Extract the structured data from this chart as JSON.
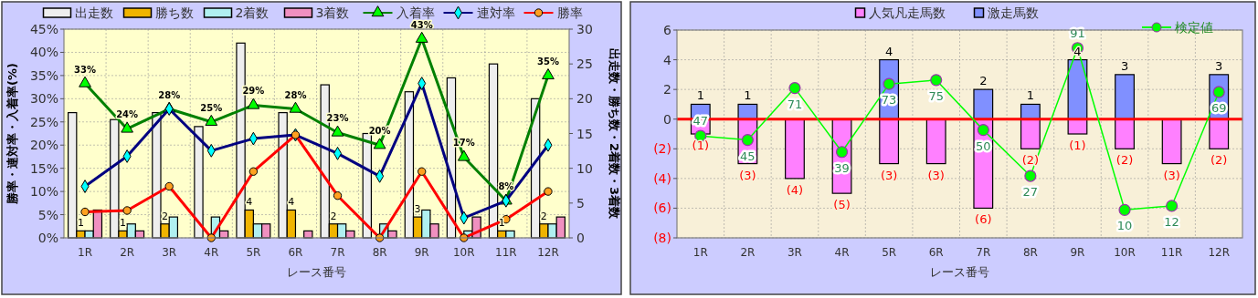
{
  "chart_data": [
    {
      "type": "bar",
      "xlabel": "レース番号",
      "ylabel": "勝率・連対率・入着率(%)",
      "y2label": "出走数・勝ち数・2着数・3着数",
      "categories": [
        "1R",
        "2R",
        "3R",
        "4R",
        "5R",
        "6R",
        "7R",
        "8R",
        "9R",
        "10R",
        "11R",
        "12R"
      ],
      "ylim": [
        0,
        45
      ],
      "yticks": [
        {
          "value": 0,
          "label": "0%"
        },
        {
          "value": 5,
          "label": "5%"
        },
        {
          "value": 10,
          "label": "10%"
        },
        {
          "value": 15,
          "label": "15%"
        },
        {
          "value": 20,
          "label": "20%"
        },
        {
          "value": 25,
          "label": "25%"
        },
        {
          "value": 30,
          "label": "30%"
        },
        {
          "value": 35,
          "label": "35%"
        },
        {
          "value": 40,
          "label": "40%"
        },
        {
          "value": 45,
          "label": "45%"
        }
      ],
      "y2lim": [
        0,
        30
      ],
      "y2ticks": [
        0,
        5,
        10,
        15,
        20,
        25,
        30
      ],
      "grid": true,
      "legend": "top",
      "series": [
        {
          "name": "出走数",
          "type": "bar",
          "axis": "y2",
          "color": "#eeeeee",
          "values": [
            18,
            17,
            18,
            16,
            28,
            18,
            22,
            15,
            21,
            23,
            25,
            20
          ]
        },
        {
          "name": "勝ち数",
          "type": "bar",
          "axis": "y2",
          "color": "#f0b400",
          "values": [
            1,
            1,
            2,
            0,
            4,
            4,
            2,
            0,
            3,
            0,
            1,
            2
          ],
          "value_labels": [
            "1",
            "1",
            "2",
            null,
            "4",
            "4",
            "2",
            null,
            "3",
            null,
            "1",
            "2"
          ]
        },
        {
          "name": "2着数",
          "type": "bar",
          "axis": "y2",
          "color": "#b0f0f0",
          "values": [
            1,
            2,
            3,
            3,
            2,
            0,
            2,
            2,
            4,
            1,
            1,
            2
          ]
        },
        {
          "name": "3着数",
          "type": "bar",
          "axis": "y2",
          "color": "#f090c0",
          "values": [
            4,
            1,
            0,
            1,
            2,
            1,
            1,
            1,
            2,
            3,
            0,
            3
          ]
        },
        {
          "name": "入着率",
          "type": "line",
          "color": "#008000",
          "marker": "triangle",
          "values": [
            33.3,
            23.5,
            27.8,
            25,
            28.6,
            27.8,
            22.7,
            20,
            42.9,
            17.4,
            8,
            35
          ],
          "value_labels": [
            "33%",
            "24%",
            "28%",
            "25%",
            "29%",
            "28%",
            "23%",
            "20%",
            "43%",
            "17%",
            "8%",
            "35%"
          ]
        },
        {
          "name": "連対率",
          "type": "line",
          "color": "#000080",
          "marker": "diamond",
          "values": [
            11.1,
            17.6,
            27.8,
            18.8,
            21.4,
            22.2,
            18.2,
            13.3,
            33.3,
            4.3,
            8,
            20
          ]
        },
        {
          "name": "勝率",
          "type": "line",
          "color": "#ff0000",
          "marker": "circle",
          "values": [
            5.6,
            5.9,
            11.1,
            0,
            14.3,
            22.2,
            9.1,
            0,
            14.3,
            0,
            4,
            10
          ]
        }
      ]
    },
    {
      "type": "bar",
      "stacked": true,
      "xlabel": "レース番号",
      "categories": [
        "1R",
        "2R",
        "3R",
        "4R",
        "5R",
        "6R",
        "7R",
        "8R",
        "9R",
        "10R",
        "11R",
        "12R"
      ],
      "ylim": [
        -8,
        6
      ],
      "yticks": [
        {
          "value": -8,
          "label": "(8)"
        },
        {
          "value": -6,
          "label": "(6)"
        },
        {
          "value": -4,
          "label": "(4)"
        },
        {
          "value": -2,
          "label": "(2)"
        },
        0,
        2,
        4,
        6
      ],
      "y2lim": [
        -4,
        100
      ],
      "grid": true,
      "legend": "top",
      "ref_lines": [
        {
          "axis": "y",
          "value": 0,
          "color": "#ff0000"
        }
      ],
      "series": [
        {
          "name": "人気凡走馬数",
          "color": "#ff80ff",
          "values": [
            -1,
            -3,
            -4,
            -5,
            -3,
            -3,
            -6,
            -2,
            -1,
            -2,
            -3,
            -2
          ],
          "value_labels": [
            "(1)",
            "(3)",
            "(4)",
            "(5)",
            "(3)",
            "(3)",
            "(6)",
            "(2)",
            "(1)",
            "(2)",
            "(3)",
            "(2)"
          ]
        },
        {
          "name": "激走馬数",
          "color": "#8090ff",
          "values": [
            1,
            1,
            0,
            0,
            4,
            0,
            2,
            1,
            4,
            3,
            0,
            3
          ],
          "value_labels": [
            "1",
            "1",
            null,
            null,
            "4",
            null,
            "2",
            "1",
            "4",
            "3",
            null,
            "3"
          ]
        },
        {
          "name": "検定値",
          "type": "line",
          "axis": "y2",
          "color": "#00ff00",
          "marker": "circle",
          "values": [
            47,
            45,
            71,
            39,
            73,
            75,
            50,
            27,
            91,
            10,
            12,
            69
          ],
          "value_labels": [
            "47",
            "45",
            "71",
            "39",
            "73",
            "75",
            "50",
            "27",
            "91",
            "10",
            "12",
            "69"
          ]
        }
      ]
    }
  ]
}
